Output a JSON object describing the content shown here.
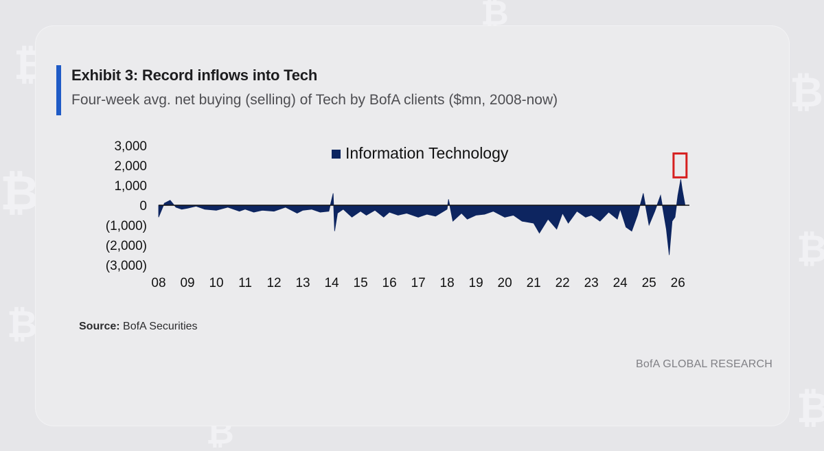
{
  "header": {
    "title": "Exhibit 3: Record inflows into Tech",
    "subtitle": "Four-week avg. net buying (selling) of Tech by BofA clients ($mn, 2008-now)"
  },
  "footer": {
    "source_label": "Source:",
    "source_value": "BofA Securities",
    "brand": "BofA GLOBAL RESEARCH"
  },
  "colors": {
    "series": "#0d2560",
    "accent": "#1f5bc6",
    "highlight_box": "#d62020"
  },
  "chart_data": {
    "type": "area",
    "series": [
      {
        "name": "Information Technology",
        "x": [
          2008.0,
          2008.2,
          2008.4,
          2008.6,
          2008.8,
          2009.0,
          2009.3,
          2009.6,
          2010.0,
          2010.4,
          2010.8,
          2011.0,
          2011.3,
          2011.6,
          2012.0,
          2012.4,
          2012.8,
          2013.0,
          2013.3,
          2013.6,
          2013.9,
          2014.0,
          2014.05,
          2014.1,
          2014.2,
          2014.4,
          2014.7,
          2015.0,
          2015.2,
          2015.5,
          2015.8,
          2016.0,
          2016.3,
          2016.6,
          2017.0,
          2017.3,
          2017.6,
          2018.0,
          2018.05,
          2018.2,
          2018.5,
          2018.7,
          2019.0,
          2019.3,
          2019.6,
          2020.0,
          2020.3,
          2020.6,
          2021.0,
          2021.2,
          2021.5,
          2021.8,
          2022.0,
          2022.2,
          2022.5,
          2022.8,
          2023.0,
          2023.3,
          2023.6,
          2023.9,
          2024.0,
          2024.2,
          2024.4,
          2024.6,
          2024.8,
          2025.0,
          2025.2,
          2025.4,
          2025.6,
          2025.7,
          2025.8,
          2025.9,
          2026.0,
          2026.1,
          2026.15,
          2026.25
        ],
        "values": [
          -600,
          100,
          250,
          -100,
          -200,
          -150,
          -50,
          -200,
          -250,
          -100,
          -300,
          -200,
          -350,
          -250,
          -300,
          -100,
          -400,
          -250,
          -200,
          -350,
          -300,
          300,
          600,
          -1300,
          -400,
          -200,
          -600,
          -300,
          -500,
          -250,
          -600,
          -350,
          -500,
          -400,
          -600,
          -450,
          -550,
          -200,
          300,
          -800,
          -400,
          -700,
          -500,
          -450,
          -300,
          -600,
          -500,
          -800,
          -900,
          -1400,
          -700,
          -1200,
          -400,
          -900,
          -300,
          -600,
          -500,
          -800,
          -350,
          -700,
          -200,
          -1100,
          -1300,
          -500,
          600,
          -1000,
          -300,
          500,
          -1200,
          -2500,
          -800,
          -600,
          500,
          1300,
          800,
          0
        ]
      }
    ],
    "x_tick_labels": [
      "08",
      "09",
      "10",
      "11",
      "12",
      "13",
      "14",
      "15",
      "16",
      "17",
      "18",
      "19",
      "20",
      "21",
      "22",
      "23",
      "24",
      "25",
      "26"
    ],
    "y_tick_labels": [
      "3,000",
      "2,000",
      "1,000",
      "0",
      "(1,000)",
      "(2,000)",
      "(3,000)"
    ],
    "ylim": [
      -3000,
      3000
    ],
    "xlim": [
      2008,
      2026.4
    ],
    "legend_position": "top-center",
    "grid": false,
    "highlight": {
      "x": [
        2025.85,
        2026.3
      ],
      "y": [
        1400,
        2600
      ]
    }
  }
}
